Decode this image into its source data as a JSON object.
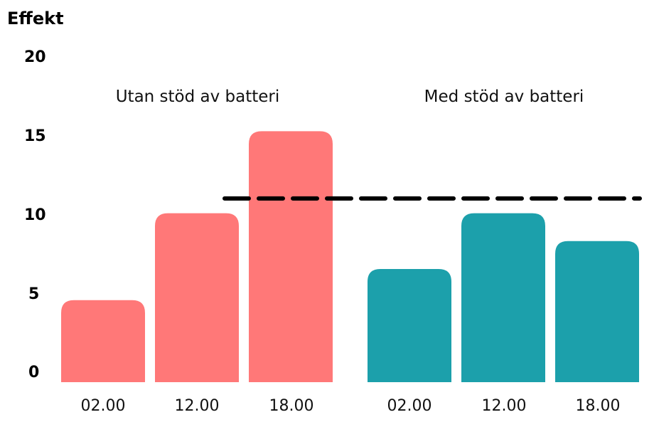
{
  "chart_data": {
    "type": "bar",
    "ylabel": "Effekt",
    "ylim": [
      0,
      20
    ],
    "yticks": [
      "0",
      "5",
      "10",
      "15",
      "20"
    ],
    "grid": false,
    "groups": [
      {
        "name": "Utan stöd av batteri",
        "color": "#ff7878",
        "categories": [
          "02.00",
          "12.00",
          "18.00"
        ],
        "values": [
          5,
          10.3,
          15.3
        ]
      },
      {
        "name": "Med stöd av batteri",
        "color": "#1ca0ab",
        "categories": [
          "02.00",
          "12.00",
          "18.00"
        ],
        "values": [
          6.9,
          10.3,
          8.6
        ]
      }
    ],
    "reference_line": {
      "value": 11.2,
      "style": "dashed",
      "color": "#000000"
    }
  }
}
